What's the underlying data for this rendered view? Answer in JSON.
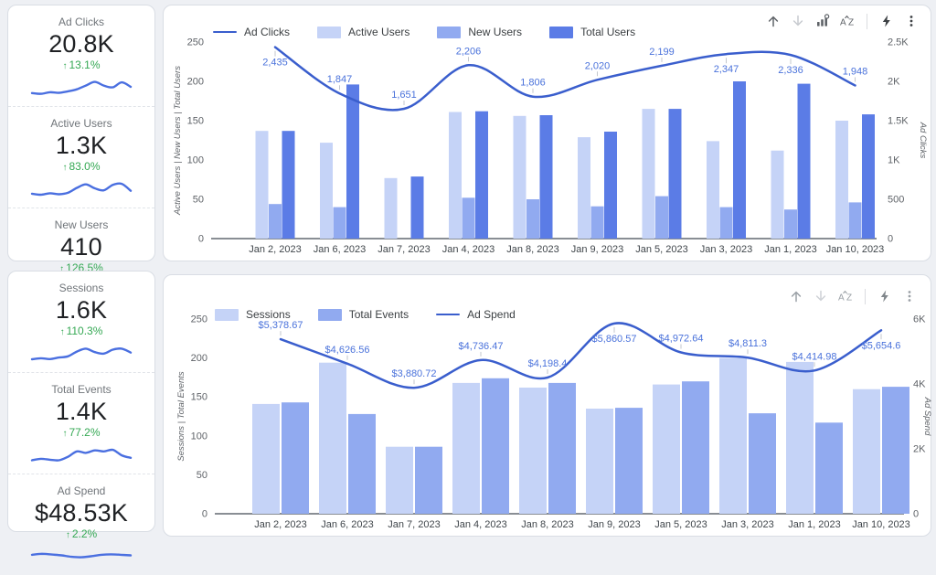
{
  "scorecards": {
    "group1": [
      {
        "label": "Ad Clicks",
        "value": "20.8K",
        "delta": "13.1%",
        "spark": [
          2.5,
          2.2,
          2.8,
          2.6,
          3.2,
          4.0,
          5.5,
          7.0,
          5.5,
          4.8,
          6.8,
          5.0
        ]
      },
      {
        "label": "Active Users",
        "value": "1.3K",
        "delta": "83.0%",
        "spark": [
          2.8,
          2.4,
          3.0,
          2.6,
          3.2,
          5.2,
          6.6,
          5.0,
          4.2,
          6.4,
          6.8,
          4.0
        ]
      },
      {
        "label": "New Users",
        "value": "410",
        "delta": "126.5%",
        "spark": [
          2.2,
          2.6,
          2.4,
          3.0,
          3.4,
          5.4,
          6.6,
          5.2,
          4.6,
          6.2,
          6.6,
          5.0
        ]
      }
    ],
    "group2": [
      {
        "label": "Sessions",
        "value": "1.6K",
        "delta": "110.3%",
        "spark": [
          2.4,
          2.8,
          2.5,
          3.1,
          3.6,
          5.5,
          6.7,
          5.3,
          4.7,
          6.3,
          6.7,
          5.1
        ]
      },
      {
        "label": "Total Events",
        "value": "1.4K",
        "delta": "77.2%",
        "spark": [
          2.6,
          3.2,
          2.8,
          2.6,
          4.0,
          6.2,
          5.6,
          6.6,
          6.2,
          6.8,
          4.6,
          3.6
        ]
      },
      {
        "label": "Ad Spend",
        "value": "$48.53K",
        "delta": "2.2%",
        "spark": [
          5.4,
          5.8,
          5.5,
          5.2,
          4.6,
          4.4,
          4.8,
          5.4,
          5.6,
          5.4,
          5.2
        ]
      }
    ]
  },
  "icons": {
    "toolbar1": [
      "move-up-icon",
      "move-down-icon",
      "optional-metrics-icon",
      "sort-icon",
      "quick-actions-icon",
      "more-options-icon"
    ],
    "toolbar2": [
      "move-up-icon",
      "move-down-icon",
      "sort-icon",
      "quick-actions-icon",
      "more-options-icon"
    ]
  },
  "theme": {
    "bar_light": "#c5d3f7",
    "bar_medium": "#91aaf0",
    "bar_dark": "#5b7ce6",
    "line": "#3a5ecd",
    "label_blue": "#4a72db",
    "delta_green": "#34a853",
    "spark_blue": "#4a6fe0"
  },
  "chart_data": [
    {
      "type": "combo-bar-line",
      "categories": [
        "Jan 2, 2023",
        "Jan 6, 2023",
        "Jan 7, 2023",
        "Jan 4, 2023",
        "Jan 8, 2023",
        "Jan 9, 2023",
        "Jan 5, 2023",
        "Jan 3, 2023",
        "Jan 1, 2023",
        "Jan 10, 2023"
      ],
      "bar_series": [
        {
          "name": "Active Users",
          "color": "#c5d3f7",
          "values": [
            137,
            122,
            77,
            161,
            156,
            129,
            165,
            124,
            112,
            150
          ]
        },
        {
          "name": "New Users",
          "color": "#91aaf0",
          "values": [
            44,
            40,
            0,
            52,
            50,
            41,
            54,
            40,
            37,
            46
          ]
        },
        {
          "name": "Total Users",
          "color": "#5b7ce6",
          "values": [
            137,
            196,
            79,
            162,
            157,
            136,
            165,
            200,
            197,
            158
          ]
        }
      ],
      "line_series": {
        "name": "Ad Clicks",
        "color": "#3a5ecd",
        "axis": "right",
        "values": [
          2435,
          1847,
          1651,
          2206,
          1806,
          2020,
          2199,
          2347,
          2336,
          1948
        ],
        "labels": [
          "2,435",
          "1,847",
          "1,651",
          "2,206",
          "1,806",
          "2,020",
          "2,199",
          "2,347",
          "2,336",
          "1,948"
        ]
      },
      "legend": [
        {
          "glyph": "line",
          "color": "#3a5ecd",
          "label": "Ad Clicks"
        },
        {
          "glyph": "swatch",
          "color": "#c5d3f7",
          "label": "Active Users"
        },
        {
          "glyph": "swatch",
          "color": "#91aaf0",
          "label": "New Users"
        },
        {
          "glyph": "swatch",
          "color": "#5b7ce6",
          "label": "Total Users"
        }
      ],
      "left_axis": {
        "title": "Active Users | New Users | Total Users",
        "min": 0,
        "max": 250,
        "ticks": [
          {
            "v": 0,
            "label": "0"
          },
          {
            "v": 50,
            "label": "50"
          },
          {
            "v": 100,
            "label": "100"
          },
          {
            "v": 150,
            "label": "150"
          },
          {
            "v": 200,
            "label": "200"
          },
          {
            "v": 250,
            "label": "250"
          }
        ]
      },
      "right_axis": {
        "title": "Ad Clicks",
        "min": 0,
        "max": 2500,
        "ticks": [
          {
            "v": 0,
            "label": "0"
          },
          {
            "v": 500,
            "label": "500"
          },
          {
            "v": 1000,
            "label": "1K"
          },
          {
            "v": 1500,
            "label": "1.5K"
          },
          {
            "v": 2000,
            "label": "2K"
          },
          {
            "v": 2500,
            "label": "2.5K"
          }
        ]
      },
      "legend_position": "top"
    },
    {
      "type": "combo-bar-line",
      "categories": [
        "Jan 2, 2023",
        "Jan 6, 2023",
        "Jan 7, 2023",
        "Jan 4, 2023",
        "Jan 8, 2023",
        "Jan 9, 2023",
        "Jan 5, 2023",
        "Jan 3, 2023",
        "Jan 1, 2023",
        "Jan 10, 2023"
      ],
      "bar_series": [
        {
          "name": "Sessions",
          "color": "#c5d3f7",
          "values": [
            141,
            194,
            86,
            168,
            162,
            135,
            166,
            200,
            195,
            160
          ]
        },
        {
          "name": "Total Events",
          "color": "#91aaf0",
          "values": [
            143,
            128,
            86,
            174,
            168,
            136,
            170,
            129,
            117,
            163
          ]
        }
      ],
      "line_series": {
        "name": "Ad Spend",
        "color": "#3a5ecd",
        "axis": "right",
        "values": [
          5378.67,
          4626.56,
          3880.72,
          4736.47,
          4198.4,
          5860.57,
          4972.64,
          4811.3,
          4414.98,
          5654.6
        ],
        "labels": [
          "$5,378.67",
          "$4,626.56",
          "$3,880.72",
          "$4,736.47",
          "$4,198.4",
          "$5,860.57",
          "$4,972.64",
          "$4,811.3",
          "$4,414.98",
          "$5,654.6"
        ]
      },
      "legend": [
        {
          "glyph": "swatch",
          "color": "#c5d3f7",
          "label": "Sessions"
        },
        {
          "glyph": "swatch",
          "color": "#91aaf0",
          "label": "Total Events"
        },
        {
          "glyph": "line",
          "color": "#3a5ecd",
          "label": "Ad Spend"
        }
      ],
      "left_axis": {
        "title": "Sessions | Total Events",
        "min": 0,
        "max": 250,
        "ticks": [
          {
            "v": 0,
            "label": "0"
          },
          {
            "v": 50,
            "label": "50"
          },
          {
            "v": 100,
            "label": "100"
          },
          {
            "v": 150,
            "label": "150"
          },
          {
            "v": 200,
            "label": "200"
          },
          {
            "v": 250,
            "label": "250"
          }
        ]
      },
      "right_axis": {
        "title": "Ad Spend",
        "min": 0,
        "max": 6000,
        "ticks": [
          {
            "v": 0,
            "label": "0"
          },
          {
            "v": 2000,
            "label": "2K"
          },
          {
            "v": 4000,
            "label": "4K"
          },
          {
            "v": 6000,
            "label": "6K"
          }
        ]
      },
      "legend_position": "top"
    }
  ]
}
